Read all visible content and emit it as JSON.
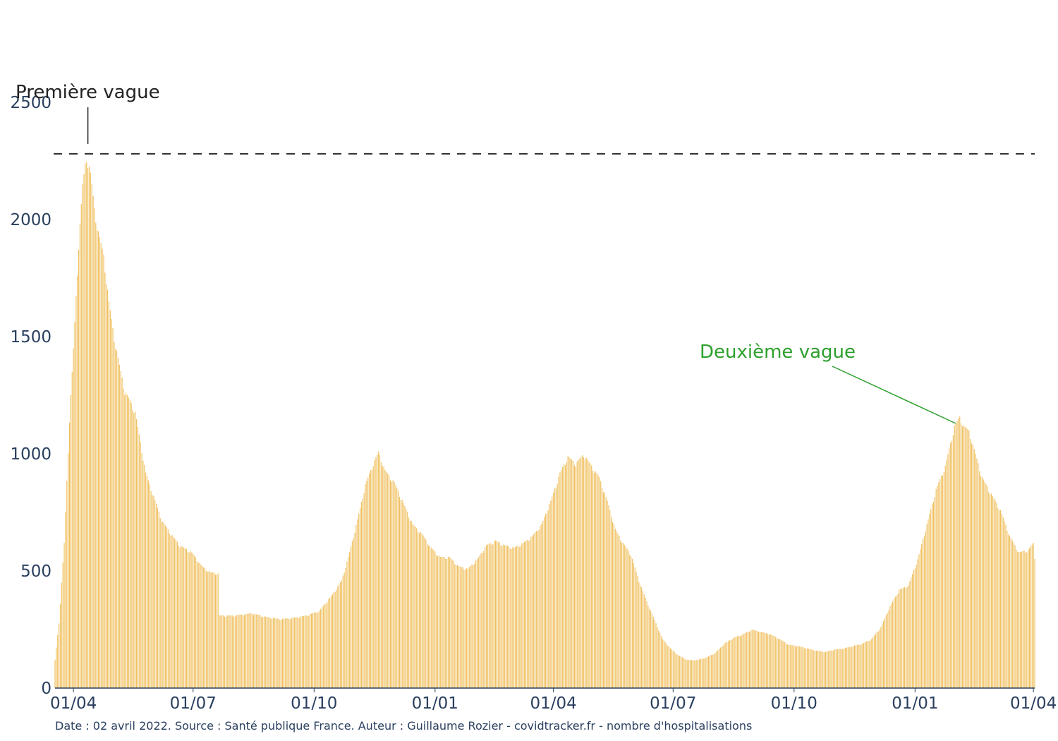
{
  "chart_data": {
    "type": "bar",
    "title": "",
    "xlabel": "",
    "ylabel": "",
    "ylim": [
      0,
      2500
    ],
    "x_range": [
      "2020-03-18",
      "2022-04-02"
    ],
    "y_ticks": [
      0,
      500,
      1000,
      1500,
      2000,
      2500
    ],
    "x_ticks": [
      {
        "date": "2020-04-01",
        "label": "01/04"
      },
      {
        "date": "2020-07-01",
        "label": "01/07"
      },
      {
        "date": "2020-10-01",
        "label": "01/10"
      },
      {
        "date": "2021-01-01",
        "label": "01/01"
      },
      {
        "date": "2021-04-01",
        "label": "01/04"
      },
      {
        "date": "2021-07-01",
        "label": "01/07"
      },
      {
        "date": "2021-10-01",
        "label": "01/10"
      },
      {
        "date": "2022-01-01",
        "label": "01/01"
      },
      {
        "date": "2022-04-01",
        "label": "01/04"
      }
    ],
    "bar_color": "#f0c060",
    "grid": false,
    "reference_line": {
      "value": 2280,
      "style": "dashed",
      "color": "#333333"
    },
    "series": [
      {
        "name": "",
        "keypoints": [
          [
            "2020-03-18",
            120
          ],
          [
            "2020-03-21",
            280
          ],
          [
            "2020-03-25",
            620
          ],
          [
            "2020-03-29",
            1150
          ],
          [
            "2020-04-01",
            1450
          ],
          [
            "2020-04-05",
            1900
          ],
          [
            "2020-04-08",
            2150
          ],
          [
            "2020-04-11",
            2280
          ],
          [
            "2020-04-14",
            2200
          ],
          [
            "2020-04-17",
            2050
          ],
          [
            "2020-04-20",
            1950
          ],
          [
            "2020-04-24",
            1850
          ],
          [
            "2020-04-28",
            1650
          ],
          [
            "2020-05-02",
            1500
          ],
          [
            "2020-05-06",
            1380
          ],
          [
            "2020-05-10",
            1270
          ],
          [
            "2020-05-14",
            1230
          ],
          [
            "2020-05-18",
            1180
          ],
          [
            "2020-05-22",
            1050
          ],
          [
            "2020-05-26",
            920
          ],
          [
            "2020-06-01",
            820
          ],
          [
            "2020-06-07",
            720
          ],
          [
            "2020-06-14",
            660
          ],
          [
            "2020-06-21",
            610
          ],
          [
            "2020-06-30",
            580
          ],
          [
            "2020-07-08",
            520
          ],
          [
            "2020-07-14",
            495
          ],
          [
            "2020-07-20",
            490
          ],
          [
            "2020-07-21",
            310
          ],
          [
            "2020-08-01",
            310
          ],
          [
            "2020-08-15",
            320
          ],
          [
            "2020-08-25",
            305
          ],
          [
            "2020-09-05",
            295
          ],
          [
            "2020-09-15",
            300
          ],
          [
            "2020-09-25",
            310
          ],
          [
            "2020-10-05",
            330
          ],
          [
            "2020-10-15",
            400
          ],
          [
            "2020-10-22",
            460
          ],
          [
            "2020-10-28",
            580
          ],
          [
            "2020-11-03",
            720
          ],
          [
            "2020-11-09",
            870
          ],
          [
            "2020-11-15",
            960
          ],
          [
            "2020-11-19",
            1010
          ],
          [
            "2020-11-24",
            930
          ],
          [
            "2020-12-01",
            880
          ],
          [
            "2020-12-08",
            790
          ],
          [
            "2020-12-15",
            700
          ],
          [
            "2020-12-22",
            660
          ],
          [
            "2020-12-29",
            600
          ],
          [
            "2021-01-05",
            560
          ],
          [
            "2021-01-12",
            560
          ],
          [
            "2021-01-19",
            520
          ],
          [
            "2021-01-26",
            510
          ],
          [
            "2021-02-02",
            550
          ],
          [
            "2021-02-09",
            610
          ],
          [
            "2021-02-16",
            630
          ],
          [
            "2021-02-23",
            610
          ],
          [
            "2021-03-02",
            600
          ],
          [
            "2021-03-09",
            620
          ],
          [
            "2021-03-16",
            650
          ],
          [
            "2021-03-23",
            700
          ],
          [
            "2021-03-30",
            800
          ],
          [
            "2021-04-06",
            920
          ],
          [
            "2021-04-12",
            990
          ],
          [
            "2021-04-18",
            960
          ],
          [
            "2021-04-24",
            1000
          ],
          [
            "2021-04-30",
            950
          ],
          [
            "2021-05-06",
            900
          ],
          [
            "2021-05-12",
            800
          ],
          [
            "2021-05-18",
            680
          ],
          [
            "2021-05-24",
            620
          ],
          [
            "2021-05-30",
            570
          ],
          [
            "2021-06-05",
            460
          ],
          [
            "2021-06-11",
            370
          ],
          [
            "2021-06-17",
            290
          ],
          [
            "2021-06-23",
            210
          ],
          [
            "2021-06-29",
            170
          ],
          [
            "2021-07-05",
            140
          ],
          [
            "2021-07-12",
            120
          ],
          [
            "2021-07-19",
            120
          ],
          [
            "2021-07-26",
            130
          ],
          [
            "2021-08-02",
            150
          ],
          [
            "2021-08-09",
            190
          ],
          [
            "2021-08-16",
            215
          ],
          [
            "2021-08-23",
            230
          ],
          [
            "2021-08-30",
            250
          ],
          [
            "2021-09-06",
            240
          ],
          [
            "2021-09-13",
            230
          ],
          [
            "2021-09-20",
            210
          ],
          [
            "2021-09-27",
            185
          ],
          [
            "2021-10-04",
            180
          ],
          [
            "2021-10-11",
            170
          ],
          [
            "2021-10-18",
            160
          ],
          [
            "2021-10-25",
            155
          ],
          [
            "2021-11-01",
            165
          ],
          [
            "2021-11-08",
            170
          ],
          [
            "2021-11-15",
            180
          ],
          [
            "2021-11-22",
            190
          ],
          [
            "2021-11-29",
            210
          ],
          [
            "2021-12-06",
            260
          ],
          [
            "2021-12-13",
            350
          ],
          [
            "2021-12-20",
            420
          ],
          [
            "2021-12-27",
            440
          ],
          [
            "2022-01-03",
            550
          ],
          [
            "2022-01-10",
            700
          ],
          [
            "2022-01-17",
            850
          ],
          [
            "2022-01-24",
            950
          ],
          [
            "2022-01-31",
            1120
          ],
          [
            "2022-02-04",
            1160
          ],
          [
            "2022-02-07",
            1120
          ],
          [
            "2022-02-11",
            1100
          ],
          [
            "2022-02-16",
            1000
          ],
          [
            "2022-02-21",
            900
          ],
          [
            "2022-02-28",
            830
          ],
          [
            "2022-03-07",
            760
          ],
          [
            "2022-03-14",
            650
          ],
          [
            "2022-03-21",
            580
          ],
          [
            "2022-03-28",
            590
          ],
          [
            "2022-04-01",
            620
          ],
          [
            "2022-04-02",
            560
          ]
        ]
      }
    ],
    "annotations": [
      {
        "text": "Première vague",
        "date": "2020-04-12",
        "value": 2280,
        "color": "#222222"
      },
      {
        "text": "Deuxième vague",
        "date": "2022-02-03",
        "value": 1160,
        "color": "#2ca02c"
      }
    ],
    "footer": "Date : 02 avril 2022. Source : Santé publique France. Auteur : Guillaume Rozier - covidtracker.fr - nombre d'hospitalisations"
  }
}
